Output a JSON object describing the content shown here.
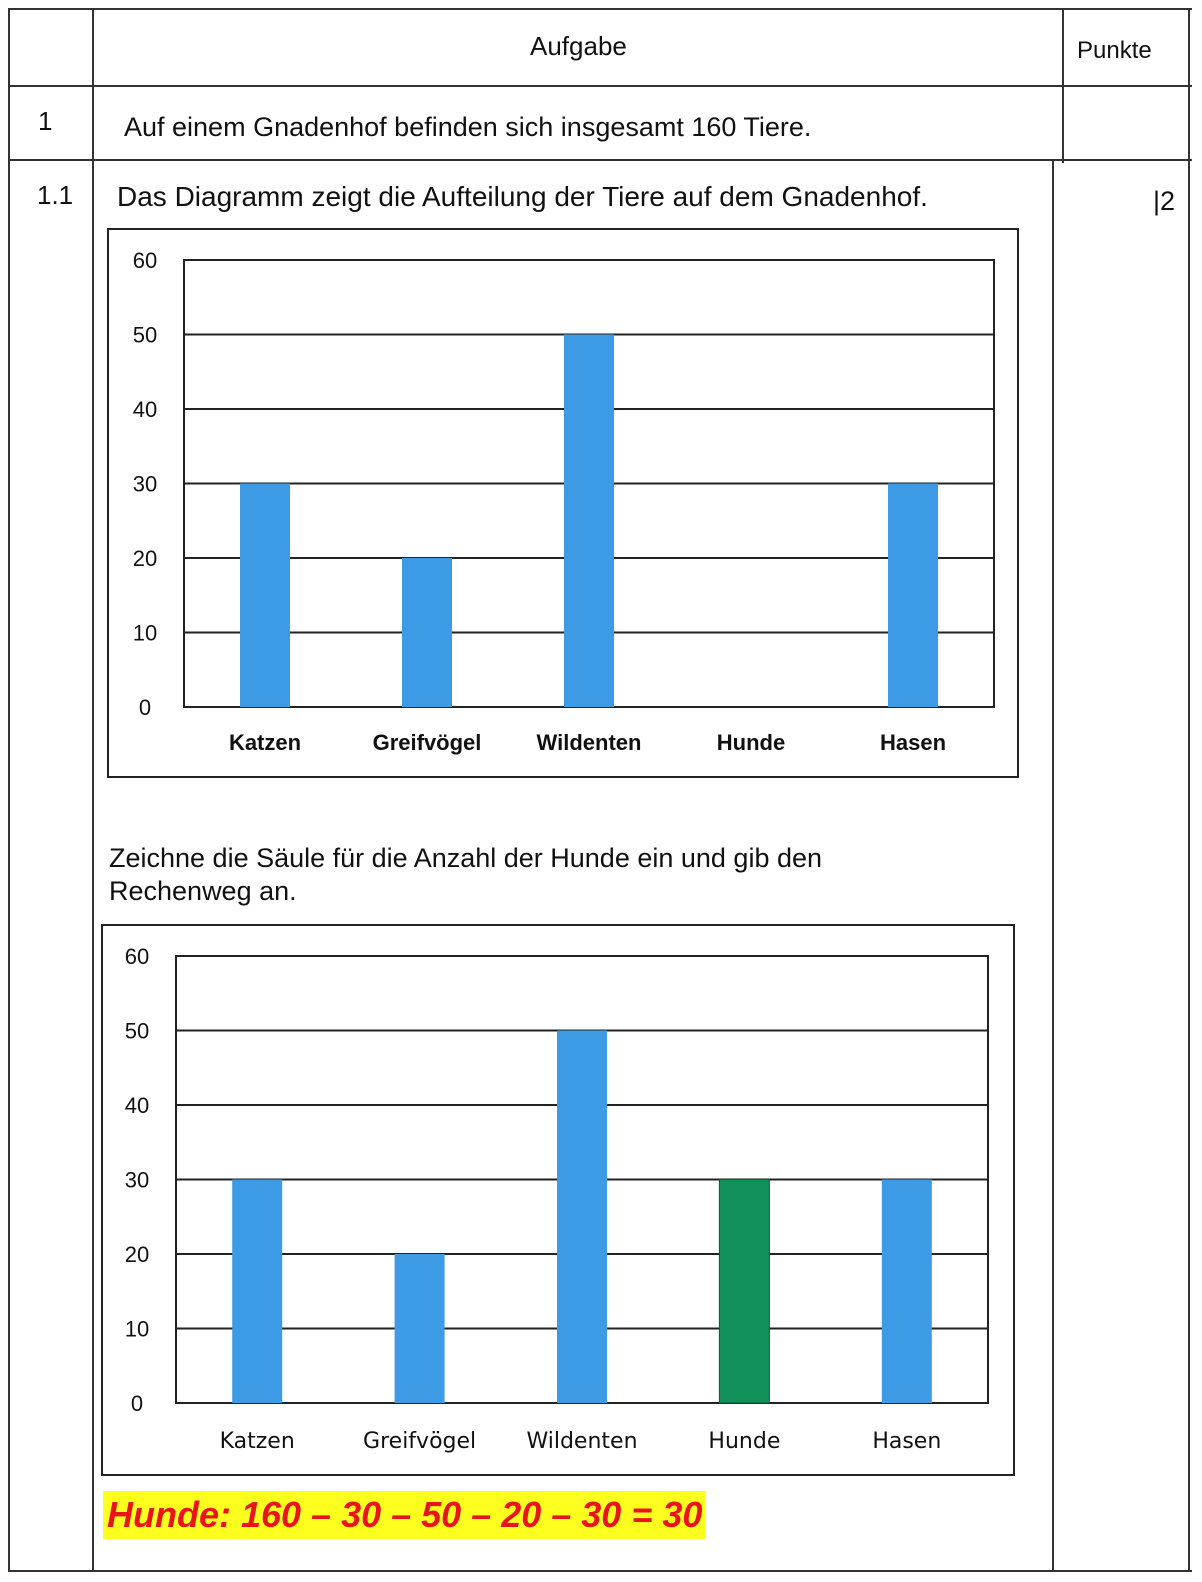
{
  "header": {
    "col_aufgabe": "Aufgabe",
    "col_punkte": "Punkte"
  },
  "task1": {
    "number": "1",
    "text": "Auf einem Gnadenhof befinden sich insgesamt 160 Tiere."
  },
  "task1_1": {
    "number": "1.1",
    "intro": "Das Diagramm zeigt die Aufteilung der Tiere auf dem Gnadenhof.",
    "points": "|2",
    "instruction_line1": "Zeichne die Säule für die Anzahl der Hunde ein und gib den",
    "instruction_line2": "Rechenweg an.",
    "answer": "Hunde: 160 – 30 – 50 – 20 – 30 = 30"
  },
  "colors": {
    "bar": "#3d9be6",
    "highlight_bar": "#12905a",
    "answer_text": "#e8141a",
    "answer_bg": "#ffff1f"
  },
  "chart_data": [
    {
      "type": "bar",
      "categories": [
        "Katzen",
        "Greifvögel",
        "Wildenten",
        "Hunde",
        "Hasen"
      ],
      "values": [
        30,
        20,
        50,
        0,
        30
      ],
      "ylim": [
        0,
        60
      ],
      "yticks": [
        0,
        10,
        20,
        30,
        40,
        50,
        60
      ],
      "grid": true
    },
    {
      "type": "bar",
      "categories": [
        "Katzen",
        "Greifvögel",
        "Wildenten",
        "Hunde",
        "Hasen"
      ],
      "values": [
        30,
        20,
        50,
        30,
        30
      ],
      "ylim": [
        0,
        60
      ],
      "yticks": [
        0,
        10,
        20,
        30,
        40,
        50,
        60
      ],
      "grid": true,
      "highlight_category": "Hunde"
    }
  ]
}
